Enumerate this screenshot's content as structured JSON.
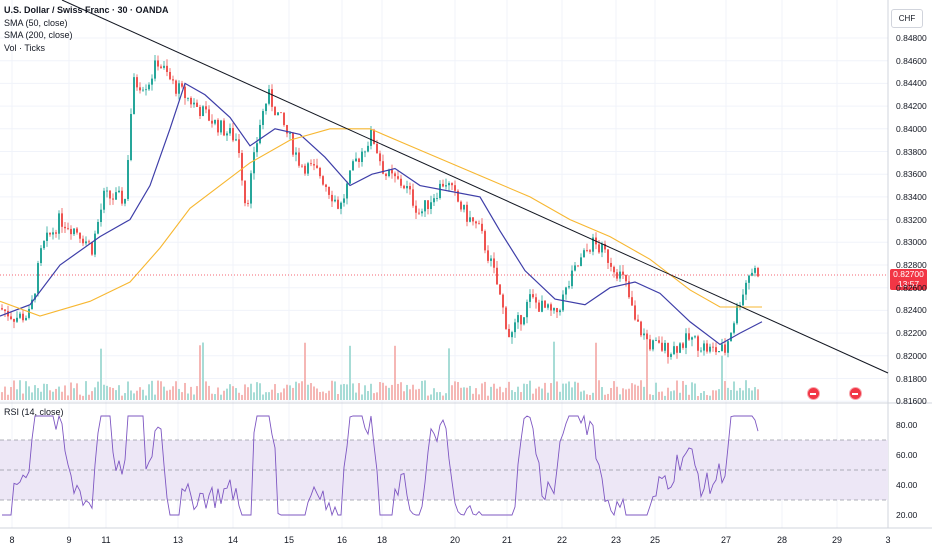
{
  "symbol": {
    "title": "U.S. Dollar / Swiss Franc · 30 · OANDA",
    "indicators": [
      "SMA (50, close)",
      "SMA (200, close)",
      "Vol · Ticks"
    ],
    "currency": "CHF"
  },
  "last_price": {
    "value": "0.82700",
    "countdown": "13:57"
  },
  "price_axis": [
    "0.84800",
    "0.84600",
    "0.84400",
    "0.84200",
    "0.84000",
    "0.83800",
    "0.83600",
    "0.83400",
    "0.83200",
    "0.83000",
    "0.82800",
    "0.82600",
    "0.82400",
    "0.82200",
    "0.82000",
    "0.81800",
    "0.81600"
  ],
  "time_axis": [
    "8",
    "9",
    "11",
    "13",
    "14",
    "15",
    "16",
    "18",
    "20",
    "21",
    "22",
    "23",
    "25",
    "27",
    "28",
    "29",
    "3"
  ],
  "rsi": {
    "label": "RSI (14, close)",
    "axis": [
      "80.00",
      "60.00",
      "40.00",
      "20.00"
    ],
    "upper": 70,
    "middle": 50,
    "lower": 30
  },
  "colors": {
    "up": "#26a69a",
    "down": "#ef5350",
    "sma50": "#3e3ea8",
    "sma200": "#f7b731",
    "trendline": "#131722",
    "rsi_line": "#7e57c2",
    "rsi_band": "#ede7f6",
    "price_tag": "#f23645"
  },
  "events": [
    "economic-event-icon",
    "economic-event-icon"
  ]
}
